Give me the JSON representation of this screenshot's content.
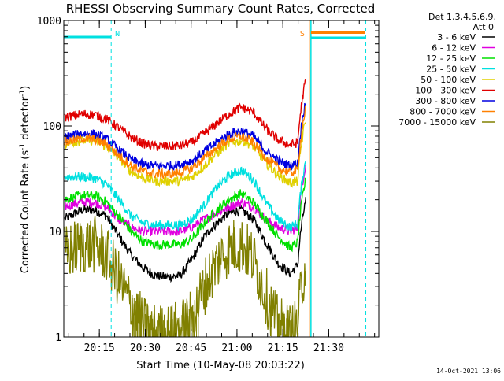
{
  "chart_data": {
    "type": "line",
    "title": "RHESSI Observing Summary Count Rates, Corrected",
    "xlabel": "Start Time (10-May-08 20:03:22)",
    "ylabel": "Corrected Count Rate (s",
    "ylabel_sup1": "-1",
    "ylabel_mid": " detector",
    "ylabel_sup2": "-1",
    "ylabel_end": ")",
    "y_scale": "log",
    "ylim": [
      1,
      1000
    ],
    "y_ticks": [
      "1",
      "10",
      "100",
      "1000"
    ],
    "x_tick_labels": [
      "20:15",
      "20:30",
      "20:45",
      "21:00",
      "21:15",
      "21:30"
    ],
    "x_tick_minutes": [
      11.63,
      26.63,
      41.63,
      56.63,
      71.63,
      86.63
    ],
    "xlim_minutes": [
      0,
      103
    ],
    "legend_header": [
      "Det 1,3,4,5,6,9,",
      "Att 0"
    ],
    "series": [
      {
        "name": "3 - 6 keV",
        "color": "#000000",
        "x": [
          0,
          6,
          10,
          14,
          18,
          22,
          26,
          30,
          34,
          38,
          42,
          46,
          50,
          54,
          58,
          62,
          66,
          70,
          74,
          77
        ],
        "values": [
          13,
          16,
          16,
          14,
          9,
          6,
          4.5,
          3.8,
          3.7,
          3.8,
          5.5,
          9,
          12,
          15,
          16,
          13,
          8,
          5,
          4,
          5
        ]
      },
      {
        "name": "6 - 12 keV",
        "color": "#e000e0",
        "x": [
          0,
          6,
          10,
          14,
          18,
          22,
          26,
          30,
          34,
          38,
          42,
          46,
          50,
          54,
          58,
          62,
          66,
          70,
          74,
          77
        ],
        "values": [
          17,
          19,
          19,
          17,
          13,
          11,
          10,
          10,
          10,
          10,
          11,
          13,
          15,
          17,
          19,
          17,
          13,
          11,
          10,
          11
        ]
      },
      {
        "name": "12 - 25 keV",
        "color": "#00e000",
        "x": [
          0,
          6,
          10,
          14,
          18,
          22,
          26,
          30,
          34,
          38,
          42,
          46,
          50,
          54,
          58,
          62,
          66,
          70,
          74,
          77
        ],
        "values": [
          20,
          22,
          22,
          19,
          14,
          10,
          8,
          7.5,
          7.5,
          7.5,
          8.5,
          12,
          16,
          20,
          23,
          19,
          13,
          9,
          7,
          8
        ]
      },
      {
        "name": "25 - 50 keV",
        "color": "#00e0e0",
        "x": [
          0,
          6,
          10,
          14,
          18,
          22,
          26,
          30,
          34,
          38,
          42,
          46,
          50,
          54,
          58,
          62,
          66,
          70,
          74,
          77
        ],
        "values": [
          33,
          33,
          32,
          28,
          20,
          14,
          12,
          11.5,
          11.5,
          11.5,
          13,
          18,
          26,
          34,
          38,
          31,
          19,
          13,
          11,
          12
        ]
      },
      {
        "name": "50 - 100 keV",
        "color": "#e0d000",
        "x": [
          0,
          6,
          10,
          14,
          18,
          22,
          26,
          30,
          34,
          38,
          42,
          46,
          50,
          54,
          58,
          62,
          66,
          70,
          74,
          77
        ],
        "values": [
          67,
          73,
          72,
          64,
          50,
          37,
          32,
          30,
          30,
          30,
          33,
          42,
          55,
          68,
          73,
          65,
          45,
          34,
          29,
          30
        ]
      },
      {
        "name": "100 - 300 keV",
        "color": "#e00000",
        "x": [
          0,
          6,
          10,
          14,
          18,
          22,
          26,
          30,
          34,
          38,
          42,
          46,
          50,
          54,
          58,
          62,
          66,
          70,
          74,
          77
        ],
        "values": [
          120,
          130,
          128,
          116,
          96,
          78,
          68,
          64,
          64,
          65,
          70,
          85,
          105,
          130,
          150,
          135,
          95,
          74,
          66,
          70
        ]
      },
      {
        "name": "300 - 800 keV",
        "color": "#0000e0",
        "x": [
          0,
          6,
          10,
          14,
          18,
          22,
          26,
          30,
          34,
          38,
          42,
          46,
          50,
          54,
          58,
          62,
          66,
          70,
          74,
          77
        ],
        "values": [
          78,
          85,
          84,
          75,
          60,
          48,
          43,
          42,
          42,
          43,
          47,
          57,
          70,
          84,
          90,
          80,
          58,
          47,
          42,
          45
        ]
      },
      {
        "name": "800 - 7000 keV",
        "color": "#ff8000",
        "x": [
          0,
          6,
          10,
          14,
          18,
          22,
          26,
          30,
          34,
          38,
          42,
          46,
          50,
          54,
          58,
          62,
          66,
          70,
          74,
          77
        ],
        "values": [
          70,
          76,
          75,
          67,
          53,
          42,
          37,
          35,
          35,
          36,
          40,
          50,
          62,
          75,
          80,
          70,
          50,
          40,
          36,
          38
        ]
      },
      {
        "name": "7000 - 15000 keV",
        "color": "#808000",
        "x": [
          0,
          6,
          10,
          14,
          18,
          22,
          26,
          30,
          34,
          38,
          42,
          46,
          50,
          54,
          58,
          62,
          66,
          70,
          74,
          77
        ],
        "values": [
          6,
          7.5,
          7.5,
          6,
          3.5,
          2,
          1.3,
          1.1,
          1.1,
          1.2,
          1.5,
          3,
          5,
          7,
          7.5,
          5.5,
          2.5,
          1.3,
          1.1,
          1.3
        ]
      }
    ],
    "annotations": [
      {
        "text": "N",
        "color": "#00e0e0"
      },
      {
        "text": "S",
        "color": "#ff8000"
      }
    ],
    "timestamp": "14-Oct-2021 13:06"
  }
}
